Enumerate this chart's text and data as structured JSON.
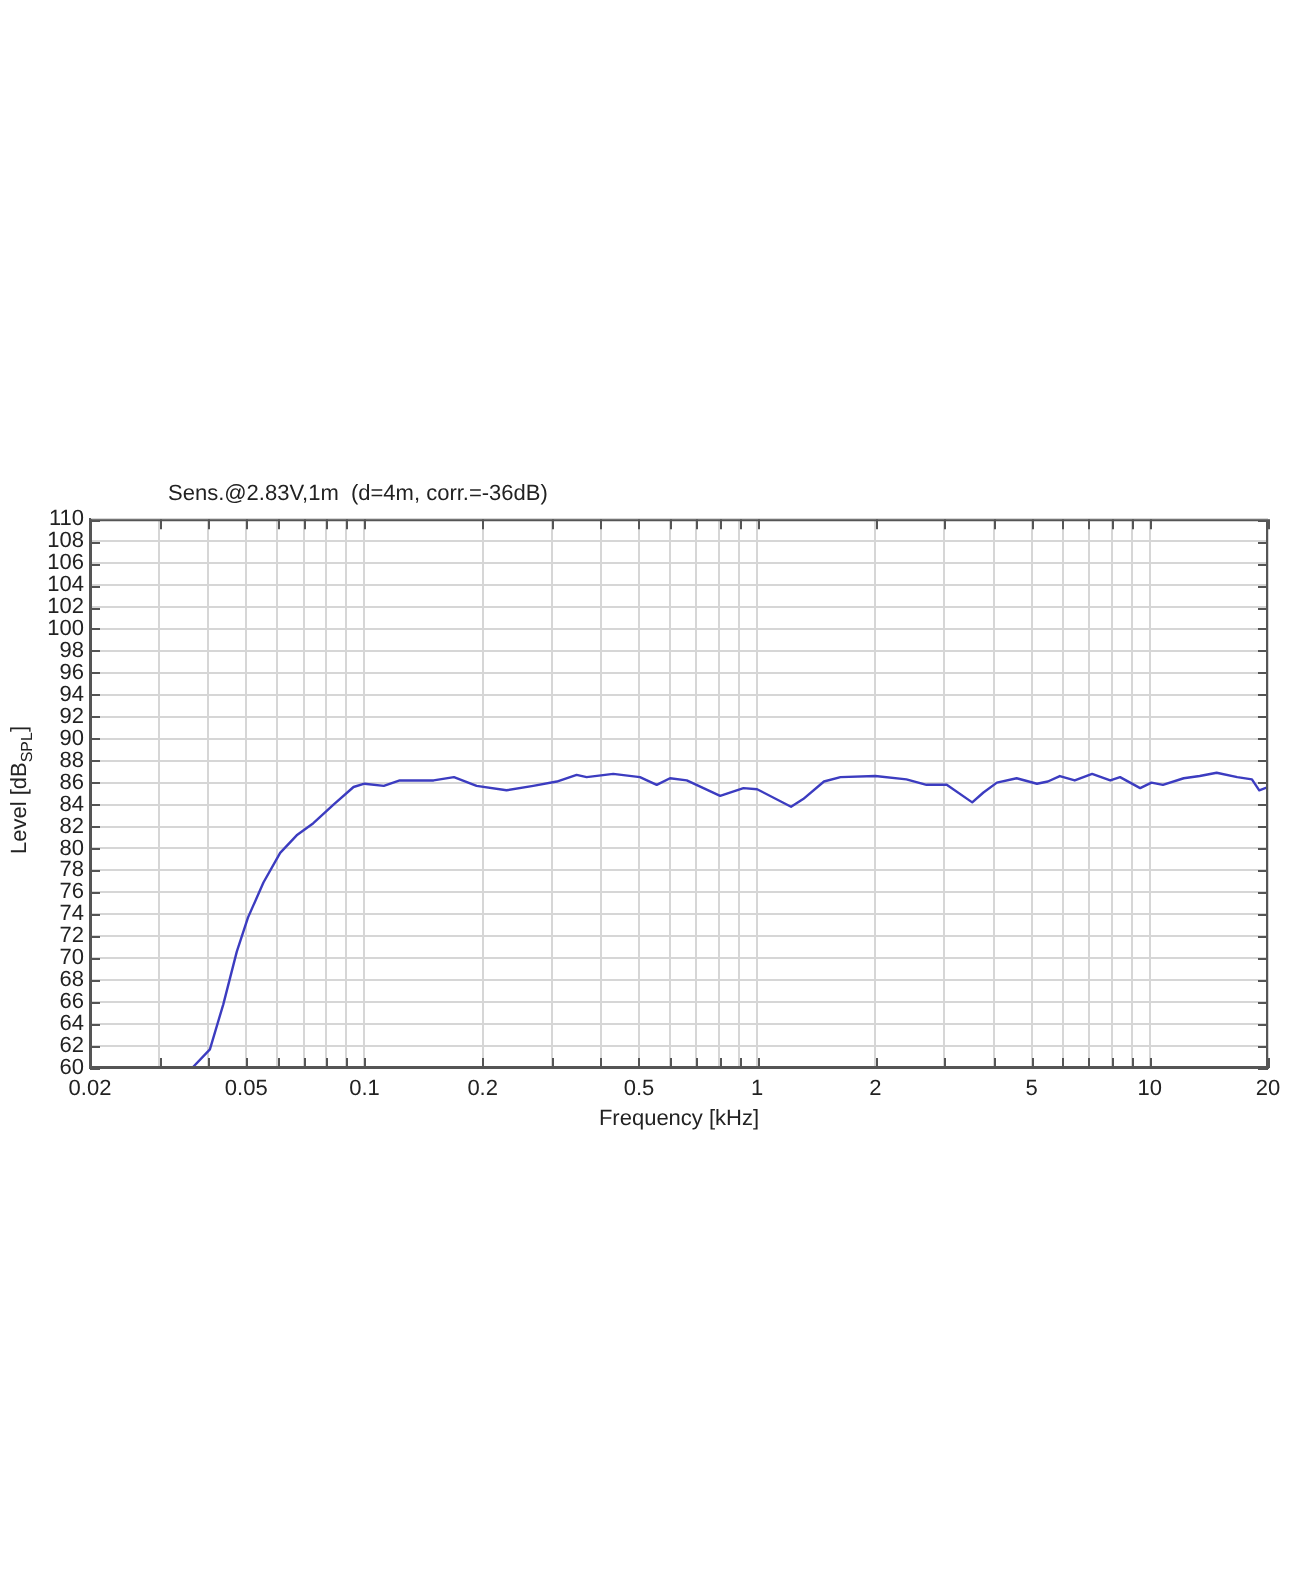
{
  "chart_data": {
    "type": "line",
    "title": "Sens.@2.83V,1m  (d=4m, corr.=-36dB)",
    "xlabel": "Frequency [kHz]",
    "ylabel": "Level [dB$_{SPL}$]",
    "x": [
      0.0364,
      0.0404,
      0.0437,
      0.0473,
      0.0505,
      0.0553,
      0.061,
      0.0672,
      0.0741,
      0.0834,
      0.0938,
      0.1,
      0.112,
      0.123,
      0.15,
      0.169,
      0.193,
      0.23,
      0.269,
      0.309,
      0.347,
      0.368,
      0.43,
      0.503,
      0.555,
      0.6,
      0.662,
      0.805,
      0.923,
      1.0,
      1.22,
      1.31,
      1.48,
      1.63,
      2.0,
      2.4,
      2.7,
      3.04,
      3.53,
      3.77,
      4.08,
      4.58,
      5.16,
      5.5,
      5.9,
      6.44,
      7.13,
      7.93,
      8.4,
      9.45,
      10.1,
      10.8,
      12.2,
      13.4,
      14.8,
      16.7,
      18.2,
      19,
      20
    ],
    "series": [
      {
        "color": "#3c3cc0",
        "values": [
          60,
          61.7,
          65.8,
          70.6,
          73.7,
          76.9,
          79.6,
          81.2,
          82.3,
          84.0,
          85.6,
          85.9,
          85.7,
          86.2,
          86.2,
          86.5,
          85.7,
          85.3,
          85.7,
          86.1,
          86.7,
          86.5,
          86.8,
          86.5,
          85.8,
          86.4,
          86.2,
          84.8,
          85.5,
          85.4,
          83.8,
          84.5,
          86.1,
          86.5,
          86.6,
          86.3,
          85.8,
          85.8,
          84.2,
          85.1,
          86.0,
          86.4,
          85.9,
          86.1,
          86.6,
          86.2,
          86.8,
          86.2,
          86.5,
          85.5,
          86.0,
          85.8,
          86.4,
          86.6,
          86.9,
          86.5,
          86.3,
          85.3,
          85.6
        ]
      }
    ],
    "xlim": [
      0.02,
      20
    ],
    "ylim": [
      60,
      110
    ],
    "xticks": [
      0.02,
      {
        "value": 0.03,
        "label": null
      },
      {
        "value": 0.04,
        "label": null
      },
      0.05,
      {
        "value": 0.06,
        "label": null
      },
      {
        "value": 0.07,
        "label": null
      },
      {
        "value": 0.08,
        "label": null
      },
      {
        "value": 0.09,
        "label": null
      },
      0.1,
      0.2,
      {
        "value": 0.3,
        "label": null
      },
      {
        "value": 0.4,
        "label": null
      },
      0.5,
      {
        "value": 0.6,
        "label": null
      },
      {
        "value": 0.7,
        "label": null
      },
      {
        "value": 0.8,
        "label": null
      },
      {
        "value": 0.9,
        "label": null
      },
      1,
      2,
      {
        "value": 3,
        "label": null
      },
      {
        "value": 4,
        "label": null
      },
      5,
      {
        "value": 6,
        "label": null
      },
      {
        "value": 7,
        "label": null
      },
      {
        "value": 8,
        "label": null
      },
      {
        "value": 9,
        "label": null
      },
      10,
      20
    ],
    "yticks": [
      60,
      62,
      64,
      66,
      68,
      70,
      72,
      74,
      76,
      78,
      80,
      82,
      84,
      86,
      88,
      90,
      92,
      94,
      96,
      98,
      100,
      102,
      104,
      106,
      108,
      110
    ],
    "log": "x",
    "grid": true,
    "marker": "none",
    "line_style": "solid"
  }
}
